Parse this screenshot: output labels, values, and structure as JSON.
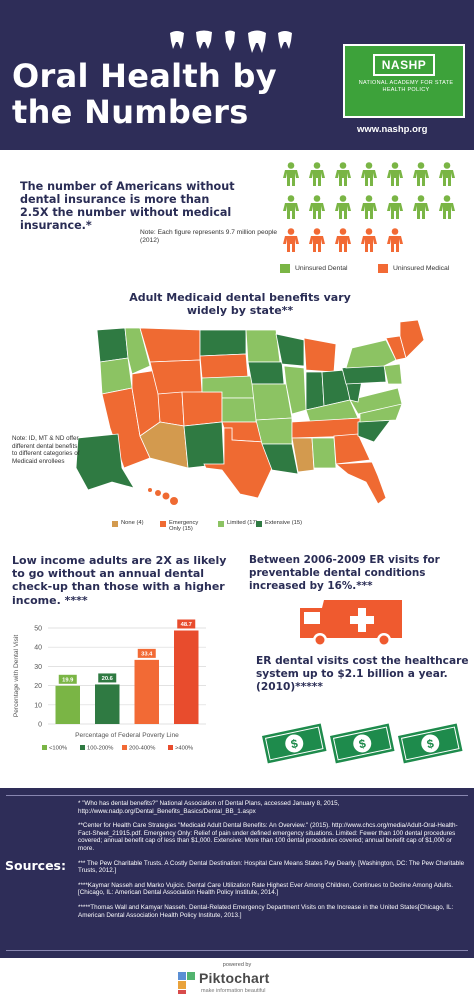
{
  "header": {
    "title_line1": "Oral Health by",
    "title_line2": "the Numbers",
    "logo_text": "NASHP",
    "logo_subtitle": "NATIONAL ACADEMY FOR STATE HEALTH POLICY",
    "url": "www.nashp.org"
  },
  "section1": {
    "headline": "The number of Americans without dental insurance is more than 2.5X the number without medical insurance.*",
    "note": "Note: Each figure represents 9.7 million people (2012)",
    "legend_dental": "Uninsured Dental",
    "legend_medical": "Uninsured Medical",
    "dental_figures": 14,
    "medical_figures": 5,
    "colors": {
      "dental": "#7ab545",
      "medical": "#f26a35"
    }
  },
  "section2": {
    "headline": "Adult Medicaid dental benefits vary widely by state**",
    "map_note": "Note: ID, MT & ND offer different dental benefits to different categories of Medicaid enrollees",
    "legend": [
      {
        "label": "None (4)",
        "color": "#d39a4e"
      },
      {
        "label": "Emergency Only (15)",
        "color": "#ef6a32"
      },
      {
        "label": "Limited (17)",
        "color": "#8cc363"
      },
      {
        "label": "Extensive (15)",
        "color": "#2f7a42"
      }
    ]
  },
  "section3": {
    "headline": "Low income adults are 2X as likely to go without an annual dental check-up than those with a higher income. ****"
  },
  "chart_data": {
    "type": "bar",
    "categories": [
      "<100%",
      "100-200%",
      "200-400%",
      ">400%"
    ],
    "values": [
      19.9,
      20.6,
      33.4,
      48.7
    ],
    "value_labels": [
      "19.9",
      "20.6",
      "33.4",
      "48.7"
    ],
    "colors": [
      "#7ab545",
      "#2f7a42",
      "#f26a35",
      "#e84c2d"
    ],
    "ylabel": "Percentage with Dental Visit",
    "xlabel": "Percentage of Federal Poverty Line",
    "ylim": [
      0,
      50
    ],
    "yticks": [
      "0",
      "10",
      "20",
      "30",
      "40",
      "50"
    ],
    "grid": true
  },
  "section4": {
    "headline": "Between 2006-2009 ER visits for preventable dental conditions increased by 16%.***"
  },
  "section5": {
    "headline": "ER dental visits cost the healthcare system up to $2.1 billion a year. (2010)*****"
  },
  "sources": {
    "label": "Sources:",
    "entries": [
      "* \"Who has dental benefits?\" National Association of Dental Plans, accessed January 8, 2015, http://www.nadp.org/Dental_Benefits_Basics/Dental_BB_1.aspx",
      "**Center for Health Care Strategies \"Medicaid Adult Dental Benefits: An Overview.\" (2015). http://www.chcs.org/media/Adult-Oral-Health-Fact-Sheet_21915.pdf. Emergency Only: Relief of pain under defined emergency situations. Limited: Fewer than 100 dental procedures covered; annual benefit cap of less than $1,000. Extensive: More than 100 dental procedures covered; annual benefit cap of $1,000 or more.",
      "*** The Pew Charitable Trusts. A Costly Dental Destination: Hospital Care Means States Pay Dearly. [Washington, DC: The Pew Charitable Trusts, 2012.]",
      "****Kaymar Nasseh and Marko Vujicic. Dental Care Utilization Rate Highest Ever Among Children, Continues to Decline Among Adults. [Chicago, IL: American Dental Association Health Policy Institute, 2014.]",
      "*****Thomas Wall and Kamyar Nasseh. Dental-Related Emergency Department Visits on the Increase in the United States[Chicago, IL: American Dental Association Health Policy Institute, 2013.]"
    ]
  },
  "footer": {
    "powered_by": "powered by",
    "brand": "Piktochart",
    "tagline": "make information beautiful"
  }
}
